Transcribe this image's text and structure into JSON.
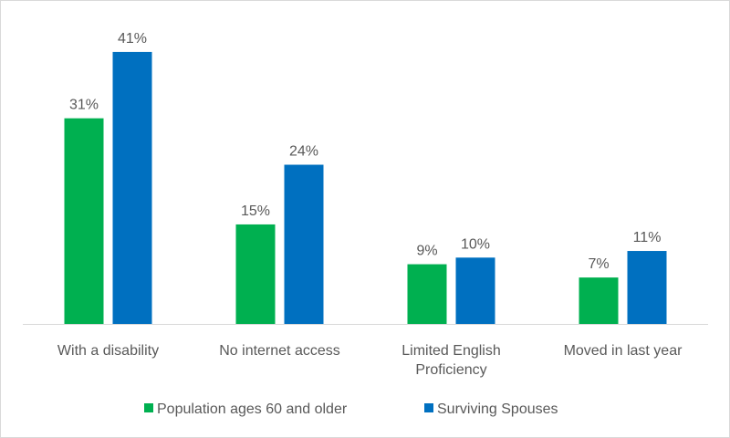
{
  "chart_data": {
    "type": "bar",
    "title": "",
    "xlabel": "",
    "ylabel": "",
    "ylim": [
      0,
      45
    ],
    "grid": false,
    "legend_position": "bottom",
    "categories": [
      [
        "With a disability"
      ],
      [
        "No internet access"
      ],
      [
        "Limited English",
        "Proficiency"
      ],
      [
        "Moved in last year"
      ]
    ],
    "series": [
      {
        "name": "Population ages 60 and older",
        "color": "#00B050",
        "values": [
          31,
          15,
          9,
          7
        ],
        "labels": [
          "31%",
          "15%",
          "9%",
          "7%"
        ]
      },
      {
        "name": "Surviving Spouses",
        "color": "#0070C0",
        "values": [
          41,
          24,
          10,
          11
        ],
        "labels": [
          "41%",
          "24%",
          "10%",
          "11%"
        ]
      }
    ]
  }
}
